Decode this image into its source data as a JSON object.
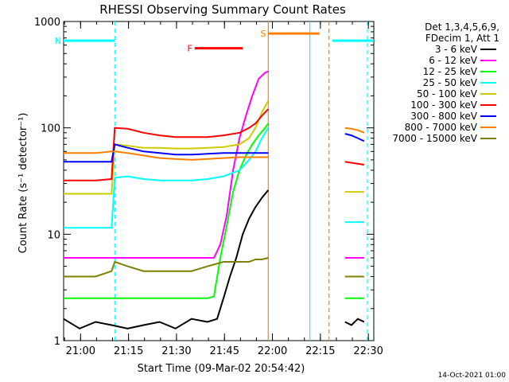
{
  "chart_data": {
    "type": "line",
    "title": "RHESSI Observing Summary Count Rates",
    "xlabel": "Start Time (09-Mar-02 20:54:42)",
    "ylabel": "Count Rate (s⁻¹ detector⁻¹)",
    "x_unit": "minutes after 20:54:42",
    "xlim": [
      0,
      97
    ],
    "ylim": [
      1,
      1000
    ],
    "y_scale": "log",
    "x_ticks": [
      {
        "value": 5.3,
        "label": "21:00"
      },
      {
        "value": 20.3,
        "label": "21:15"
      },
      {
        "value": 35.3,
        "label": "21:30"
      },
      {
        "value": 50.3,
        "label": "21:45"
      },
      {
        "value": 65.3,
        "label": "22:00"
      },
      {
        "value": 80.3,
        "label": "22:15"
      },
      {
        "value": 95.3,
        "label": "22:30"
      }
    ],
    "y_ticks": [
      {
        "value": 1,
        "label": "1"
      },
      {
        "value": 10,
        "label": "10"
      },
      {
        "value": 100,
        "label": "100"
      },
      {
        "value": 1000,
        "label": "1000"
      }
    ],
    "legend_header": [
      "Det 1,3,4,5,6,9,",
      "FDecim 1, Att 1"
    ],
    "legend_position": "right",
    "series": [
      {
        "name": "3 - 6 keV",
        "color": "#000000",
        "segments": [
          [
            [
              0,
              1.6
            ],
            [
              5,
              1.3
            ],
            [
              10,
              1.5
            ],
            [
              15,
              1.4
            ],
            [
              20,
              1.3
            ],
            [
              25,
              1.4
            ],
            [
              30,
              1.5
            ],
            [
              35,
              1.3
            ],
            [
              40,
              1.6
            ],
            [
              45,
              1.5
            ],
            [
              48,
              1.6
            ],
            [
              50,
              2.5
            ],
            [
              52,
              4
            ],
            [
              54,
              6
            ],
            [
              56,
              10
            ],
            [
              58,
              14
            ],
            [
              60,
              18
            ],
            [
              62,
              22
            ],
            [
              64,
              26
            ]
          ],
          [
            [
              88,
              1.5
            ],
            [
              90,
              1.4
            ],
            [
              92,
              1.6
            ],
            [
              94,
              1.5
            ]
          ]
        ]
      },
      {
        "name": "6 - 12 keV",
        "color": "#ff00ff",
        "segments": [
          [
            [
              0,
              6
            ],
            [
              5,
              6
            ],
            [
              10,
              6
            ],
            [
              15,
              6
            ],
            [
              20,
              6
            ],
            [
              25,
              6
            ],
            [
              30,
              6
            ],
            [
              35,
              6
            ],
            [
              40,
              6
            ],
            [
              45,
              6
            ],
            [
              47,
              6
            ],
            [
              49,
              8
            ],
            [
              51,
              15
            ],
            [
              53,
              40
            ],
            [
              55,
              80
            ],
            [
              57,
              130
            ],
            [
              59,
              200
            ],
            [
              61,
              290
            ],
            [
              63,
              330
            ],
            [
              64,
              340
            ]
          ],
          [
            [
              88,
              6
            ],
            [
              90,
              6
            ],
            [
              92,
              6
            ],
            [
              94,
              6
            ]
          ]
        ]
      },
      {
        "name": "12 - 25 keV",
        "color": "#00ff00",
        "segments": [
          [
            [
              0,
              2.5
            ],
            [
              5,
              2.5
            ],
            [
              10,
              2.5
            ],
            [
              15,
              2.5
            ],
            [
              20,
              2.5
            ],
            [
              25,
              2.5
            ],
            [
              30,
              2.5
            ],
            [
              35,
              2.5
            ],
            [
              40,
              2.5
            ],
            [
              45,
              2.5
            ],
            [
              47,
              2.6
            ],
            [
              49,
              6
            ],
            [
              51,
              12
            ],
            [
              53,
              25
            ],
            [
              55,
              40
            ],
            [
              57,
              55
            ],
            [
              59,
              70
            ],
            [
              61,
              85
            ],
            [
              63,
              100
            ],
            [
              64,
              110
            ]
          ],
          [
            [
              88,
              2.5
            ],
            [
              90,
              2.5
            ],
            [
              92,
              2.5
            ],
            [
              94,
              2.5
            ]
          ]
        ]
      },
      {
        "name": "25 - 50 keV",
        "color": "#00ffff",
        "segments": [
          [
            [
              0,
              11.5
            ],
            [
              5,
              11.5
            ],
            [
              10,
              11.5
            ],
            [
              15,
              11.5
            ],
            [
              16,
              34
            ],
            [
              20,
              35
            ],
            [
              25,
              33
            ],
            [
              30,
              32
            ],
            [
              35,
              32
            ],
            [
              40,
              32
            ],
            [
              45,
              33
            ],
            [
              50,
              35
            ],
            [
              55,
              40
            ],
            [
              58,
              50
            ],
            [
              60,
              60
            ],
            [
              62,
              80
            ],
            [
              64,
              100
            ]
          ],
          [
            [
              88,
              13
            ],
            [
              90,
              13
            ],
            [
              92,
              13
            ],
            [
              94,
              13
            ]
          ]
        ]
      },
      {
        "name": "50 - 100 keV",
        "color": "#cccc00",
        "segments": [
          [
            [
              0,
              24
            ],
            [
              5,
              24
            ],
            [
              10,
              24
            ],
            [
              15,
              24
            ],
            [
              16,
              70
            ],
            [
              20,
              68
            ],
            [
              25,
              65
            ],
            [
              30,
              65
            ],
            [
              35,
              64
            ],
            [
              40,
              64
            ],
            [
              45,
              65
            ],
            [
              50,
              66
            ],
            [
              55,
              70
            ],
            [
              58,
              80
            ],
            [
              60,
              100
            ],
            [
              62,
              140
            ],
            [
              64,
              180
            ]
          ],
          [
            [
              88,
              25
            ],
            [
              90,
              25
            ],
            [
              92,
              25
            ],
            [
              94,
              25
            ]
          ]
        ]
      },
      {
        "name": "100 - 300 keV",
        "color": "#ff0000",
        "segments": [
          [
            [
              0,
              32
            ],
            [
              5,
              32
            ],
            [
              10,
              32
            ],
            [
              15,
              33
            ],
            [
              16,
              100
            ],
            [
              20,
              98
            ],
            [
              25,
              90
            ],
            [
              30,
              85
            ],
            [
              35,
              82
            ],
            [
              40,
              82
            ],
            [
              45,
              82
            ],
            [
              50,
              85
            ],
            [
              55,
              90
            ],
            [
              58,
              100
            ],
            [
              60,
              110
            ],
            [
              62,
              130
            ],
            [
              64,
              150
            ]
          ],
          [
            [
              88,
              48
            ],
            [
              90,
              47
            ],
            [
              92,
              46
            ],
            [
              94,
              45
            ]
          ]
        ]
      },
      {
        "name": "300 - 800 keV",
        "color": "#0000ff",
        "segments": [
          [
            [
              0,
              48
            ],
            [
              5,
              48
            ],
            [
              10,
              48
            ],
            [
              15,
              48
            ],
            [
              16,
              70
            ],
            [
              20,
              65
            ],
            [
              25,
              60
            ],
            [
              30,
              58
            ],
            [
              35,
              56
            ],
            [
              40,
              56
            ],
            [
              45,
              57
            ],
            [
              50,
              58
            ],
            [
              55,
              58
            ],
            [
              58,
              58
            ],
            [
              60,
              58
            ],
            [
              62,
              58
            ],
            [
              64,
              58
            ]
          ],
          [
            [
              88,
              88
            ],
            [
              90,
              85
            ],
            [
              92,
              80
            ],
            [
              94,
              75
            ]
          ]
        ]
      },
      {
        "name": "800 - 7000 keV",
        "color": "#ff8000",
        "segments": [
          [
            [
              0,
              58
            ],
            [
              5,
              58
            ],
            [
              10,
              58
            ],
            [
              15,
              60
            ],
            [
              16,
              60
            ],
            [
              20,
              58
            ],
            [
              25,
              55
            ],
            [
              30,
              52
            ],
            [
              35,
              51
            ],
            [
              40,
              50
            ],
            [
              45,
              51
            ],
            [
              50,
              52
            ],
            [
              55,
              53
            ],
            [
              58,
              53
            ],
            [
              60,
              53
            ],
            [
              62,
              53
            ],
            [
              64,
              53
            ]
          ],
          [
            [
              88,
              100
            ],
            [
              90,
              98
            ],
            [
              92,
              95
            ],
            [
              94,
              90
            ]
          ]
        ]
      },
      {
        "name": "7000 - 15000 keV",
        "color": "#808000",
        "segments": [
          [
            [
              0,
              4
            ],
            [
              5,
              4
            ],
            [
              10,
              4
            ],
            [
              15,
              4.5
            ],
            [
              16,
              5.5
            ],
            [
              20,
              5
            ],
            [
              25,
              4.5
            ],
            [
              30,
              4.5
            ],
            [
              35,
              4.5
            ],
            [
              40,
              4.5
            ],
            [
              45,
              5
            ],
            [
              50,
              5.5
            ],
            [
              55,
              5.5
            ],
            [
              58,
              5.5
            ],
            [
              60,
              5.8
            ],
            [
              62,
              5.8
            ],
            [
              64,
              6
            ]
          ],
          [
            [
              88,
              4
            ],
            [
              90,
              4
            ],
            [
              92,
              4
            ],
            [
              94,
              4
            ]
          ]
        ]
      }
    ],
    "bands": [
      {
        "label": "N",
        "color": "#00ffff",
        "level": 660,
        "ranges": [
          [
            0,
            16
          ]
        ]
      },
      {
        "label": "",
        "color": "#00ffff",
        "level": 660,
        "ranges": [
          [
            84,
            97
          ]
        ]
      },
      {
        "label": "F",
        "color": "#ff0000",
        "level": 560,
        "ranges": [
          [
            41,
            56
          ]
        ]
      },
      {
        "label": "S",
        "color": "#ff8000",
        "level": 770,
        "ranges": [
          [
            64,
            80
          ]
        ]
      }
    ],
    "vlines": [
      {
        "x": 16,
        "color": "#00ffff",
        "style": "dashed"
      },
      {
        "x": 64,
        "color": "#ff8000",
        "style": "solid"
      },
      {
        "x": 77,
        "color": "#00ffff",
        "style": "solid"
      },
      {
        "x": 83,
        "color": "#ff8000",
        "style": "dashed"
      },
      {
        "x": 95,
        "color": "#00ffff",
        "style": "dashed"
      }
    ]
  },
  "footer": {
    "date": "14-Oct-2021 01:00"
  }
}
